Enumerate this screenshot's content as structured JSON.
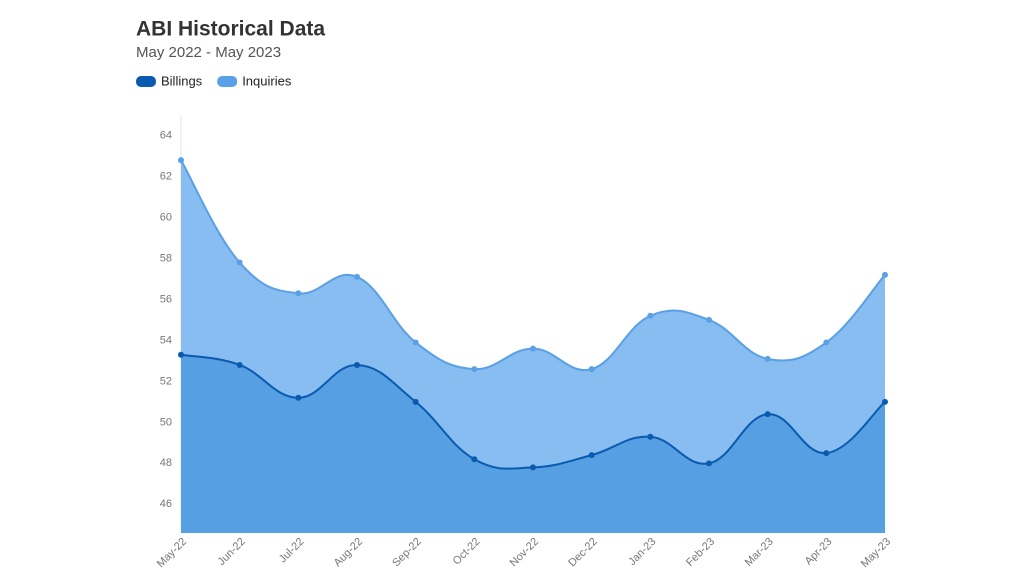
{
  "chart_data": {
    "type": "area",
    "title": "ABI Historical Data",
    "subtitle": "May 2022 - May 2023",
    "categories": [
      "May-22",
      "Jun-22",
      "Jul-22",
      "Aug-22",
      "Sep-22",
      "Oct-22",
      "Nov-22",
      "Dec-22",
      "Jan-23",
      "Feb-23",
      "Mar-23",
      "Apr-23",
      "May-23"
    ],
    "series": [
      {
        "name": "Billings",
        "color": "#0a5bb0",
        "fill": "#579fe3",
        "values": [
          53.3,
          52.8,
          51.2,
          52.8,
          51.0,
          48.2,
          47.8,
          48.4,
          49.3,
          48.0,
          50.4,
          48.5,
          51.0
        ]
      },
      {
        "name": "Inquiries",
        "color": "#5aa0e6",
        "fill": "#87bdf0",
        "values": [
          62.8,
          57.8,
          56.3,
          57.1,
          53.9,
          52.6,
          53.6,
          52.6,
          55.2,
          55.0,
          53.1,
          53.9,
          57.2
        ]
      }
    ],
    "ylim": [
      44.6,
      65
    ],
    "yticks": [
      46,
      48,
      50,
      52,
      54,
      56,
      58,
      60,
      62,
      64
    ],
    "grid": false
  }
}
